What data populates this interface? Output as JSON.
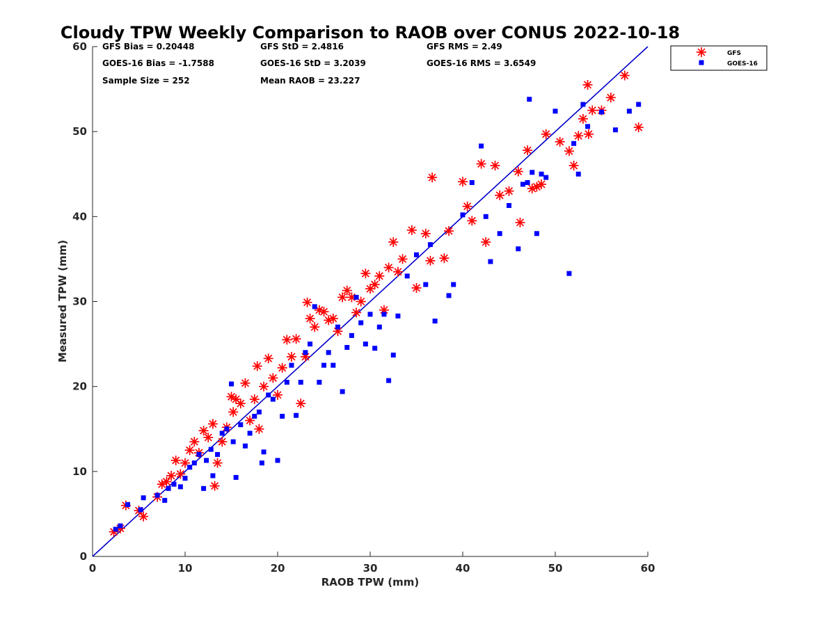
{
  "chart_data": {
    "type": "scatter",
    "title": "Cloudy TPW Weekly Comparison to RAOB over CONUS 2022-10-18",
    "xlabel": "RAOB TPW (mm)",
    "ylabel": "Measured TPW (mm)",
    "xlim": [
      0,
      60
    ],
    "ylim": [
      0,
      60
    ],
    "xticks": [
      "0",
      "10",
      "20",
      "30",
      "40",
      "50",
      "60"
    ],
    "yticks": [
      "0",
      "10",
      "20",
      "30",
      "40",
      "50",
      "60"
    ],
    "grid": false,
    "legend_position": "top-right, outside plot",
    "reference_line": {
      "label": "1:1 line",
      "x": [
        0,
        60
      ],
      "y": [
        0,
        60
      ],
      "color": "#0000cc"
    },
    "stats": {
      "gfs_bias": "GFS Bias = 0.20448",
      "goes_bias": "GOES-16 Bias = -1.7588",
      "sample_size": "Sample Size = 252",
      "gfs_std": "GFS StD = 2.4816",
      "goes_std": "GOES-16 StD = 3.2039",
      "mean_raob": "Mean RAOB = 23.227",
      "gfs_rms": "GFS RMS = 2.49",
      "goes_rms": "GOES-16 RMS = 3.6549"
    },
    "series": [
      {
        "name": "GFS",
        "marker": "asterisk",
        "color": "#ff0000",
        "x": [
          2.3,
          3.0,
          3.6,
          5.0,
          5.5,
          7.0,
          7.5,
          8.0,
          8.5,
          9.0,
          9.5,
          10.0,
          10.5,
          11.0,
          11.5,
          12.0,
          12.5,
          13.0,
          13.2,
          13.5,
          14.0,
          14.5,
          15.0,
          15.2,
          15.5,
          16.0,
          16.5,
          17.0,
          17.5,
          17.8,
          18.0,
          18.5,
          19.0,
          19.5,
          20.0,
          20.5,
          21.0,
          21.5,
          22.0,
          22.5,
          23.0,
          23.2,
          23.5,
          24.0,
          24.5,
          25.0,
          25.5,
          26.0,
          26.5,
          27.0,
          27.5,
          28.0,
          28.5,
          29.0,
          29.5,
          30.0,
          30.5,
          31.0,
          31.5,
          32.0,
          32.5,
          33.0,
          33.5,
          34.5,
          35.0,
          36.0,
          36.5,
          36.7,
          38.0,
          38.5,
          40.0,
          40.5,
          41.0,
          42.0,
          42.5,
          43.5,
          44.0,
          45.0,
          46.0,
          46.2,
          47.0,
          47.5,
          48.0,
          48.5,
          49.0,
          50.5,
          51.5,
          52.0,
          52.5,
          53.0,
          53.5,
          53.6,
          54.0,
          55.0,
          56.0,
          57.5,
          59.0
        ],
        "y": [
          2.9,
          3.3,
          6.0,
          5.4,
          4.7,
          7.0,
          8.5,
          8.8,
          9.5,
          11.3,
          9.7,
          11.0,
          12.5,
          13.5,
          12.2,
          14.8,
          14.0,
          15.6,
          8.3,
          11.0,
          13.5,
          15.2,
          18.8,
          17.0,
          18.5,
          18.0,
          20.4,
          16.0,
          18.5,
          22.4,
          15.0,
          20.0,
          23.3,
          21.0,
          19.0,
          22.2,
          25.5,
          23.5,
          25.6,
          18.0,
          23.5,
          29.9,
          28.0,
          27.0,
          29.0,
          28.8,
          27.8,
          28.0,
          26.5,
          30.5,
          31.3,
          30.5,
          28.7,
          30.0,
          33.3,
          31.5,
          32.0,
          33.0,
          29.0,
          34.0,
          37.0,
          33.5,
          35.0,
          38.4,
          31.6,
          38.0,
          34.8,
          44.6,
          35.1,
          38.3,
          44.1,
          41.2,
          39.5,
          46.2,
          37.0,
          46.0,
          42.5,
          43.0,
          45.3,
          39.3,
          47.8,
          43.3,
          43.5,
          43.8,
          49.7,
          48.8,
          47.7,
          46.0,
          49.5,
          51.5,
          55.5,
          49.7,
          52.5,
          52.5,
          54.0,
          56.6,
          50.5
        ]
      },
      {
        "name": "GOES-16",
        "marker": "square",
        "color": "#0000ff",
        "x": [
          2.5,
          3.0,
          3.8,
          5.2,
          5.5,
          7.0,
          7.8,
          8.2,
          8.8,
          9.5,
          10.0,
          10.5,
          11.0,
          11.5,
          12.0,
          12.3,
          12.8,
          13.0,
          13.5,
          14.0,
          14.5,
          15.0,
          15.2,
          15.5,
          16.0,
          16.5,
          17.0,
          17.5,
          18.0,
          18.3,
          18.5,
          19.0,
          19.5,
          20.0,
          20.5,
          21.0,
          21.5,
          22.0,
          22.5,
          23.0,
          23.5,
          24.0,
          24.5,
          25.0,
          25.5,
          26.0,
          26.5,
          27.0,
          27.5,
          28.0,
          28.5,
          29.0,
          29.5,
          30.0,
          30.5,
          31.0,
          31.5,
          32.0,
          32.5,
          33.0,
          34.0,
          35.0,
          36.0,
          36.5,
          37.0,
          38.5,
          39.0,
          40.0,
          41.0,
          42.0,
          42.5,
          43.0,
          44.0,
          45.0,
          46.0,
          46.5,
          47.0,
          47.2,
          47.5,
          48.0,
          48.5,
          49.0,
          50.0,
          51.5,
          52.0,
          52.5,
          53.0,
          53.5,
          55.0,
          56.5,
          58.0,
          59.0
        ],
        "y": [
          3.2,
          3.6,
          6.1,
          5.5,
          6.9,
          7.2,
          6.6,
          8.0,
          8.5,
          8.2,
          9.2,
          10.5,
          11.0,
          12.0,
          8.0,
          11.3,
          12.6,
          9.5,
          12.0,
          14.5,
          15.0,
          20.3,
          13.5,
          9.3,
          15.5,
          13.0,
          14.5,
          16.5,
          17.0,
          11.0,
          12.3,
          19.0,
          18.5,
          11.3,
          16.5,
          20.5,
          22.5,
          16.6,
          20.5,
          24.0,
          25.0,
          29.4,
          20.5,
          22.5,
          24.0,
          22.5,
          27.0,
          19.4,
          24.6,
          26.0,
          30.5,
          27.5,
          25.0,
          28.5,
          24.5,
          27.0,
          28.5,
          20.7,
          23.7,
          28.3,
          33.0,
          35.5,
          32.0,
          36.7,
          27.7,
          30.7,
          32.0,
          40.2,
          44.0,
          48.3,
          40.0,
          34.7,
          38.0,
          41.3,
          36.2,
          43.8,
          44.0,
          53.8,
          45.2,
          38.0,
          45.0,
          44.6,
          52.4,
          33.3,
          48.6,
          45.0,
          53.2,
          50.6,
          52.3,
          50.2,
          52.4,
          53.2
        ]
      }
    ]
  }
}
